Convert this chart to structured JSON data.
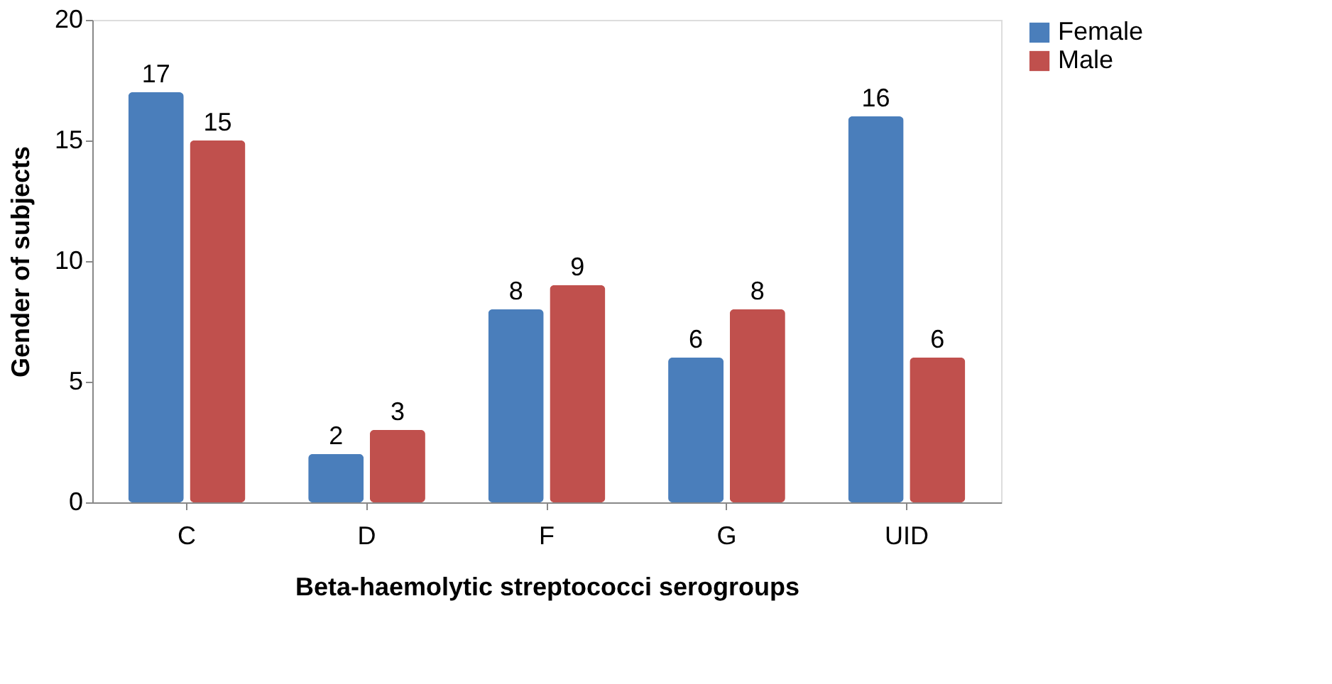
{
  "chart_data": {
    "type": "bar",
    "xlabel": "Beta-haemolytic streptococci serogroups",
    "ylabel": "Gender of subjects",
    "categories": [
      "C",
      "D",
      "F",
      "G",
      "UID"
    ],
    "series": [
      {
        "name": "Female",
        "color": "#4a7ebb",
        "values": [
          17,
          2,
          8,
          6,
          16
        ]
      },
      {
        "name": "Male",
        "color": "#c0504d",
        "values": [
          15,
          3,
          9,
          8,
          6
        ]
      }
    ],
    "ylim": [
      0,
      20
    ],
    "yticks": [
      0,
      5,
      10,
      15,
      20
    ],
    "grid": false,
    "legend": "right",
    "data_labels": true
  }
}
